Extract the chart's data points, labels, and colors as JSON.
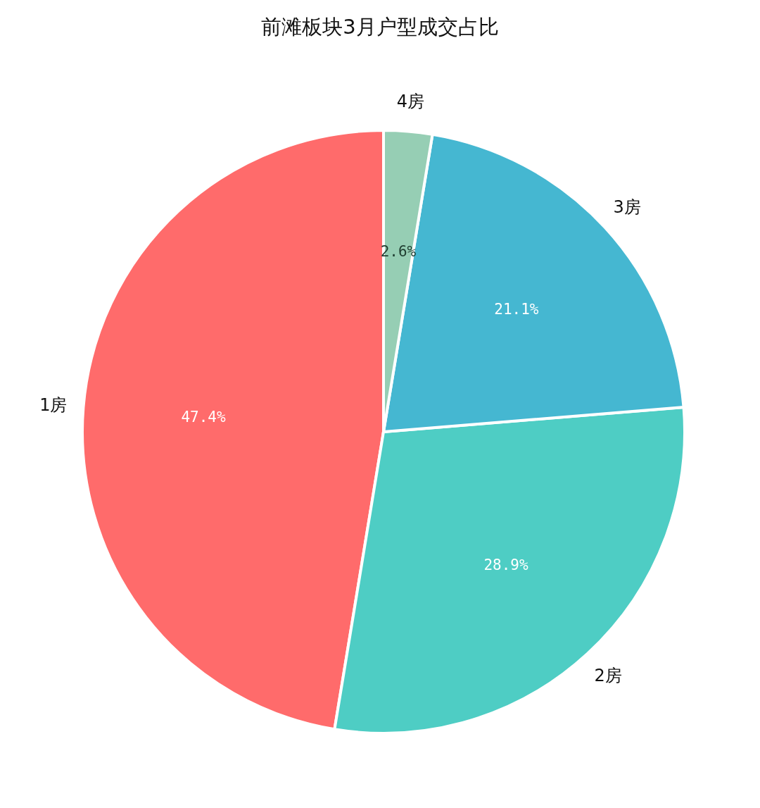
{
  "chart_data": {
    "type": "pie",
    "title": "前滩板块3月户型成交占比",
    "categories": [
      "1房",
      "2房",
      "3房",
      "4房"
    ],
    "values": [
      47.4,
      28.9,
      21.1,
      2.6
    ],
    "value_labels": [
      "47.4%",
      "28.9%",
      "21.1%",
      "2.6%"
    ],
    "colors": [
      "#ff6b6b",
      "#4ecdc4",
      "#45b7d1",
      "#96ceb4"
    ],
    "legend": false
  }
}
